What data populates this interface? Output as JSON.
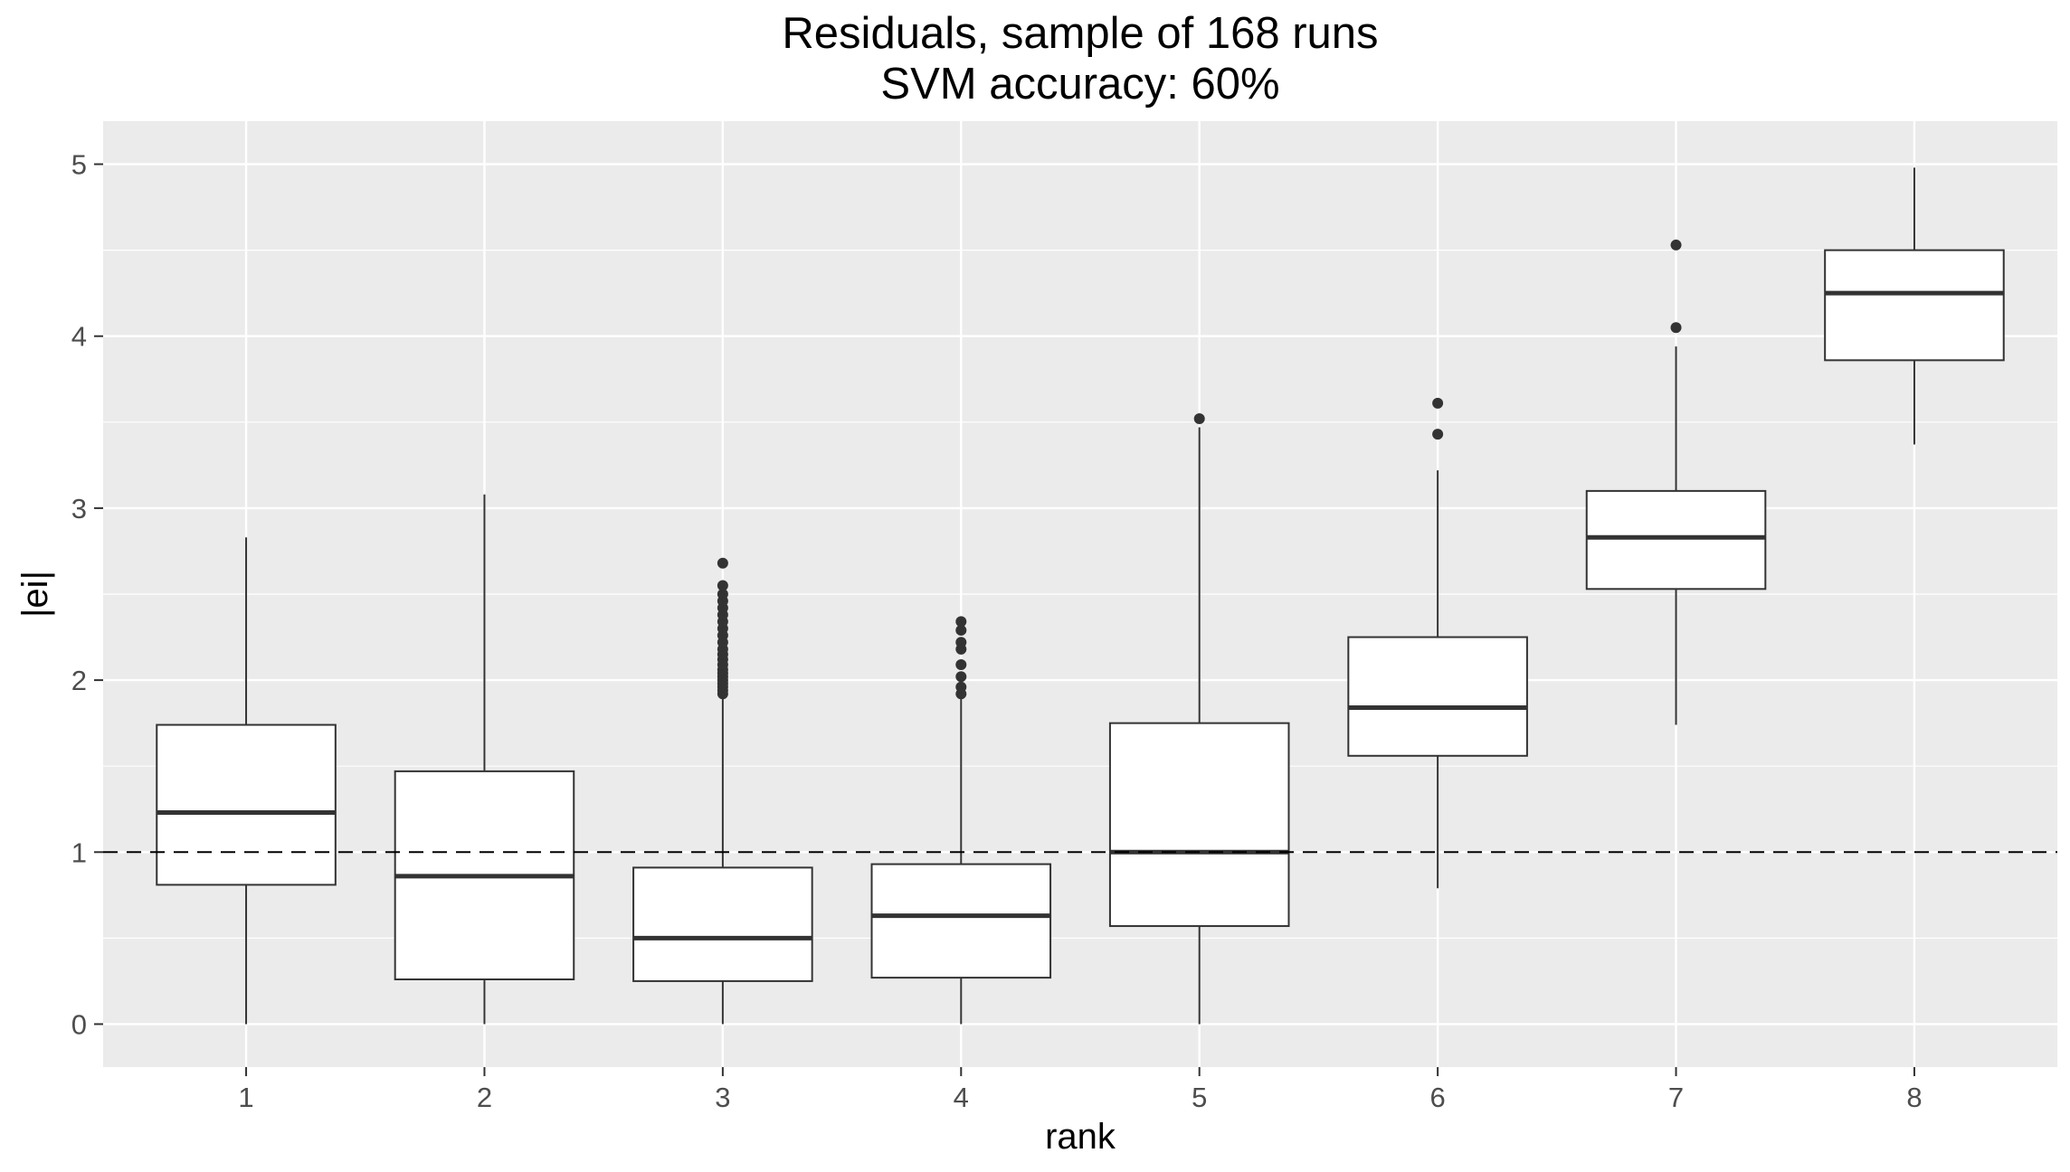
{
  "chart_data": {
    "type": "boxplot",
    "title": "Residuals, sample of 168 runs",
    "subtitle": "SVM accuracy: 60%",
    "xlabel": "rank",
    "ylabel": "|ei|",
    "ylim": [
      -0.25,
      5.25
    ],
    "yticks": [
      0,
      1,
      2,
      3,
      4,
      5
    ],
    "categories": [
      "1",
      "2",
      "3",
      "4",
      "5",
      "6",
      "7",
      "8"
    ],
    "boxes": [
      {
        "category": "1",
        "min": 0.0,
        "q1": 0.81,
        "median": 1.23,
        "q3": 1.74,
        "max": 2.83,
        "outliers": []
      },
      {
        "category": "2",
        "min": 0.0,
        "q1": 0.26,
        "median": 0.86,
        "q3": 1.47,
        "max": 3.08,
        "outliers": []
      },
      {
        "category": "3",
        "min": 0.0,
        "q1": 0.25,
        "median": 0.5,
        "q3": 0.91,
        "max": 1.9,
        "outliers": [
          1.92,
          1.94,
          1.96,
          1.98,
          2.0,
          2.02,
          2.04,
          2.06,
          2.09,
          2.12,
          2.15,
          2.18,
          2.22,
          2.26,
          2.3,
          2.34,
          2.38,
          2.42,
          2.46,
          2.5,
          2.55,
          2.68
        ]
      },
      {
        "category": "4",
        "min": 0.0,
        "q1": 0.27,
        "median": 0.63,
        "q3": 0.93,
        "max": 1.89,
        "outliers": [
          1.92,
          1.96,
          2.02,
          2.09,
          2.18,
          2.22,
          2.29,
          2.34
        ]
      },
      {
        "category": "5",
        "min": 0.0,
        "q1": 0.57,
        "median": 1.0,
        "q3": 1.75,
        "max": 3.47,
        "outliers": [
          3.52
        ]
      },
      {
        "category": "6",
        "min": 0.79,
        "q1": 1.56,
        "median": 1.84,
        "q3": 2.25,
        "max": 3.22,
        "outliers": [
          3.43,
          3.61
        ]
      },
      {
        "category": "7",
        "min": 1.74,
        "q1": 2.53,
        "median": 2.83,
        "q3": 3.1,
        "max": 3.94,
        "outliers": [
          4.05,
          4.53
        ]
      },
      {
        "category": "8",
        "min": 3.37,
        "q1": 3.86,
        "median": 4.25,
        "q3": 4.5,
        "max": 4.98,
        "outliers": []
      }
    ],
    "reference_line": {
      "y": 1,
      "style": "dashed"
    },
    "grid": true,
    "legend": "none",
    "colors": {
      "panel": "#ebebeb",
      "grid": "#ffffff",
      "box_fill": "#ffffff",
      "box_stroke": "#333333",
      "outlier": "#333333",
      "reference": "#000000"
    }
  }
}
